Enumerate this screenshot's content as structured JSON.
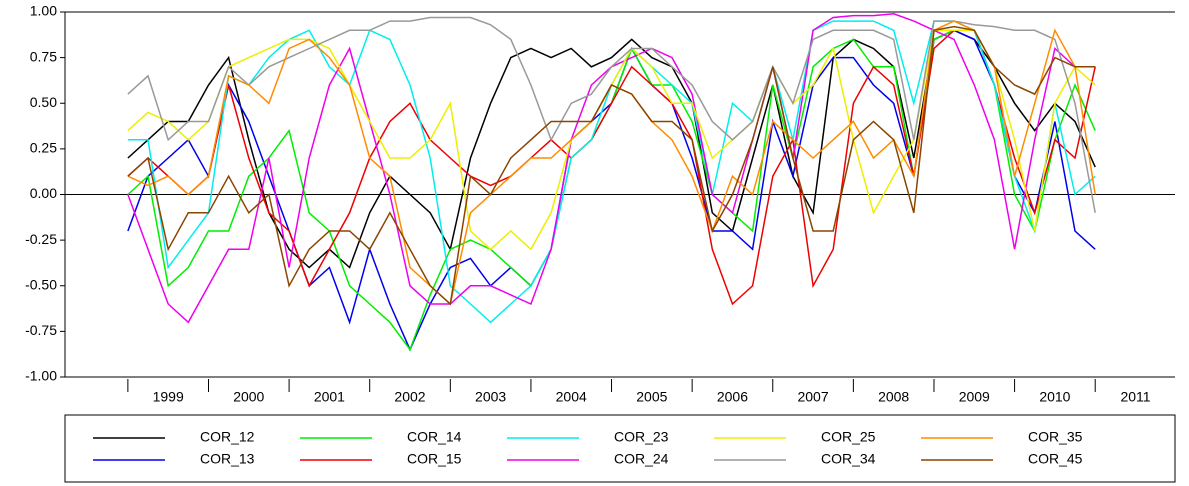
{
  "chart_data": {
    "type": "line",
    "x": [
      1999,
      1999.25,
      1999.5,
      1999.75,
      2000,
      2000.25,
      2000.5,
      2000.75,
      2001,
      2001.25,
      2001.5,
      2001.75,
      2002,
      2002.25,
      2002.5,
      2002.75,
      2003,
      2003.25,
      2003.5,
      2003.75,
      2004,
      2004.25,
      2004.5,
      2004.75,
      2005,
      2005.25,
      2005.5,
      2005.75,
      2006,
      2006.25,
      2006.5,
      2006.75,
      2007,
      2007.25,
      2007.5,
      2007.75,
      2008,
      2008.25,
      2008.5,
      2008.75,
      2009,
      2009.25,
      2009.5,
      2009.75,
      2010,
      2010.25,
      2010.5,
      2010.75,
      2011
    ],
    "x_labels": [
      "1999",
      "2000",
      "2001",
      "2002",
      "2003",
      "2004",
      "2005",
      "2006",
      "2007",
      "2008",
      "2009",
      "2010",
      "2011"
    ],
    "xlim": [
      1998.22,
      2011.99
    ],
    "xticks": [
      1999,
      2000,
      2001,
      2002,
      2003,
      2004,
      2005,
      2006,
      2007,
      2008,
      2009,
      2010,
      2011
    ],
    "ylim": [
      -1,
      1
    ],
    "yticks": [
      {
        "value": -1,
        "label": "-1.00"
      },
      {
        "value": -0.75,
        "label": "-0.75"
      },
      {
        "value": -0.5,
        "label": "-0.50"
      },
      {
        "value": -0.25,
        "label": "-0.25"
      },
      {
        "value": 0,
        "label": "0.00"
      },
      {
        "value": 0.25,
        "label": "0.25"
      },
      {
        "value": 0.5,
        "label": "0.50"
      },
      {
        "value": 0.75,
        "label": "0.75"
      },
      {
        "value": 1,
        "label": "1.00"
      }
    ],
    "series": [
      {
        "name": "COR_12",
        "color": "#000000",
        "values": [
          0.2,
          0.3,
          0.4,
          0.4,
          0.6,
          0.75,
          0.3,
          -0.1,
          -0.3,
          -0.4,
          -0.3,
          -0.4,
          -0.1,
          0.1,
          0,
          -0.1,
          -0.3,
          0.2,
          0.5,
          0.75,
          0.8,
          0.75,
          0.8,
          0.7,
          0.75,
          0.85,
          0.75,
          0.7,
          0.5,
          -0.1,
          -0.2,
          0.2,
          0.6,
          0.1,
          -0.1,
          0.75,
          0.85,
          0.8,
          0.7,
          0.2,
          0.85,
          0.9,
          0.85,
          0.7,
          0.5,
          0.35,
          0.5,
          0.4,
          0.15
        ]
      },
      {
        "name": "COR_13",
        "color": "#0000ee",
        "values": [
          -0.2,
          0.1,
          0.2,
          0.3,
          0.1,
          0.6,
          0.4,
          0.1,
          -0.2,
          -0.5,
          -0.4,
          -0.7,
          -0.3,
          -0.6,
          -0.85,
          -0.6,
          -0.4,
          -0.35,
          -0.5,
          -0.4,
          -0.5,
          -0.3,
          0.3,
          0.4,
          0.5,
          0.8,
          0.6,
          0.5,
          0.2,
          -0.2,
          -0.2,
          -0.3,
          0.4,
          0.1,
          0.6,
          0.75,
          0.75,
          0.6,
          0.5,
          0.1,
          0.85,
          0.9,
          0.85,
          0.6,
          0.1,
          -0.1,
          0.4,
          -0.2,
          -0.3
        ]
      },
      {
        "name": "COR_14",
        "color": "#00ee00",
        "values": [
          0,
          0.1,
          -0.5,
          -0.4,
          -0.2,
          -0.2,
          0.1,
          0.2,
          0.35,
          -0.1,
          -0.2,
          -0.5,
          -0.6,
          -0.7,
          -0.85,
          -0.55,
          -0.3,
          -0.25,
          -0.3,
          -0.4,
          -0.5,
          -0.3,
          0.2,
          0.3,
          0.5,
          0.8,
          0.6,
          0.6,
          0.4,
          0,
          -0.1,
          -0.2,
          0.6,
          0.2,
          0.7,
          0.8,
          0.85,
          0.7,
          0.7,
          0.1,
          0.85,
          0.9,
          0.9,
          0.6,
          0,
          -0.2,
          0.3,
          0.6,
          0.35
        ]
      },
      {
        "name": "COR_15",
        "color": "#ee0000",
        "values": [
          0.1,
          0.2,
          0.1,
          0,
          0.1,
          0.6,
          0.2,
          -0.1,
          -0.2,
          -0.5,
          -0.3,
          -0.1,
          0.2,
          0.4,
          0.5,
          0.3,
          0.2,
          0.1,
          0.05,
          0.1,
          0.2,
          0.3,
          0.2,
          0.3,
          0.5,
          0.7,
          0.6,
          0.5,
          0.3,
          -0.3,
          -0.6,
          -0.5,
          0.1,
          0.3,
          -0.5,
          -0.3,
          0.5,
          0.7,
          0.6,
          0.1,
          0.8,
          0.9,
          0.9,
          0.6,
          0.2,
          -0.1,
          0.3,
          0.2,
          0.7
        ]
      },
      {
        "name": "COR_23",
        "color": "#00eeee",
        "values": [
          0.3,
          0.3,
          -0.4,
          -0.25,
          -0.1,
          0.65,
          0.6,
          0.75,
          0.85,
          0.9,
          0.7,
          0.6,
          0.9,
          0.85,
          0.6,
          0.2,
          -0.5,
          -0.6,
          -0.7,
          -0.6,
          -0.5,
          -0.3,
          0.2,
          0.3,
          0.6,
          0.8,
          0.7,
          0.6,
          0.5,
          0,
          0.5,
          0.4,
          0.7,
          0.3,
          0.9,
          0.95,
          0.95,
          0.95,
          0.9,
          0.5,
          0.95,
          0.95,
          0.9,
          0.6,
          0.1,
          -0.2,
          0.5,
          0,
          0.1
        ]
      },
      {
        "name": "COR_24",
        "color": "#ee00ee",
        "values": [
          0,
          -0.3,
          -0.6,
          -0.7,
          -0.5,
          -0.3,
          -0.3,
          0.2,
          -0.4,
          0.2,
          0.6,
          0.8,
          0.4,
          0,
          -0.5,
          -0.6,
          -0.6,
          -0.5,
          -0.5,
          -0.55,
          -0.6,
          -0.3,
          0.3,
          0.6,
          0.7,
          0.75,
          0.8,
          0.75,
          0.55,
          0,
          -0.1,
          0.3,
          0.7,
          0.2,
          0.9,
          0.97,
          0.98,
          0.98,
          0.99,
          0.95,
          0.9,
          0.85,
          0.6,
          0.3,
          -0.3,
          0.3,
          0.8,
          0.7,
          0.7
        ]
      },
      {
        "name": "COR_25",
        "color": "#eeee00",
        "values": [
          0.35,
          0.45,
          0.4,
          0.3,
          0.4,
          0.7,
          0.75,
          0.8,
          0.85,
          0.85,
          0.8,
          0.6,
          0.4,
          0.2,
          0.2,
          0.3,
          0.5,
          -0.2,
          -0.3,
          -0.2,
          -0.3,
          -0.1,
          0.3,
          0.4,
          0.6,
          0.8,
          0.7,
          0.5,
          0.5,
          0.2,
          0.3,
          0.4,
          0.7,
          0.5,
          0.6,
          0.8,
          0.3,
          -0.1,
          0.1,
          0.3,
          0.9,
          0.9,
          0.9,
          0.7,
          0.3,
          -0.2,
          0.5,
          0.7,
          0.6
        ]
      },
      {
        "name": "COR_34",
        "color": "#999999",
        "values": [
          0.55,
          0.65,
          0.3,
          0.4,
          0.4,
          0.7,
          0.6,
          0.7,
          0.75,
          0.8,
          0.85,
          0.9,
          0.9,
          0.95,
          0.95,
          0.97,
          0.97,
          0.97,
          0.93,
          0.85,
          0.6,
          0.3,
          0.5,
          0.55,
          0.7,
          0.8,
          0.8,
          0.7,
          0.6,
          0.4,
          0.3,
          0.4,
          0.7,
          0.5,
          0.85,
          0.9,
          0.9,
          0.9,
          0.85,
          0.3,
          0.95,
          0.95,
          0.93,
          0.92,
          0.9,
          0.9,
          0.85,
          0.5,
          -0.1
        ]
      },
      {
        "name": "COR_35",
        "color": "#ff8c00",
        "values": [
          0.1,
          0.05,
          0.1,
          0,
          0.1,
          0.65,
          0.6,
          0.5,
          0.8,
          0.85,
          0.75,
          0.6,
          0.2,
          0.1,
          -0.4,
          -0.5,
          -0.6,
          -0.1,
          0,
          0.1,
          0.2,
          0.2,
          0.3,
          0.4,
          0.6,
          0.55,
          0.4,
          0.3,
          0.1,
          -0.2,
          0.1,
          0,
          0.4,
          0.3,
          0.2,
          0.3,
          0.4,
          0.2,
          0.3,
          0.1,
          0.9,
          0.95,
          0.9,
          0.7,
          0.1,
          0.5,
          0.9,
          0.7,
          0
        ]
      },
      {
        "name": "COR_45",
        "color": "#8b4500",
        "values": [
          0.1,
          0.2,
          -0.3,
          -0.1,
          -0.1,
          0.1,
          -0.1,
          0,
          -0.5,
          -0.3,
          -0.2,
          -0.2,
          -0.3,
          -0.1,
          -0.3,
          -0.5,
          -0.6,
          0.1,
          0,
          0.2,
          0.3,
          0.4,
          0.4,
          0.4,
          0.6,
          0.55,
          0.4,
          0.4,
          0.3,
          -0.2,
          0,
          0.3,
          0.7,
          0.2,
          -0.2,
          -0.2,
          0.3,
          0.4,
          0.3,
          -0.1,
          0.9,
          0.92,
          0.9,
          0.7,
          0.6,
          0.55,
          0.75,
          0.7,
          0.7
        ]
      }
    ]
  }
}
